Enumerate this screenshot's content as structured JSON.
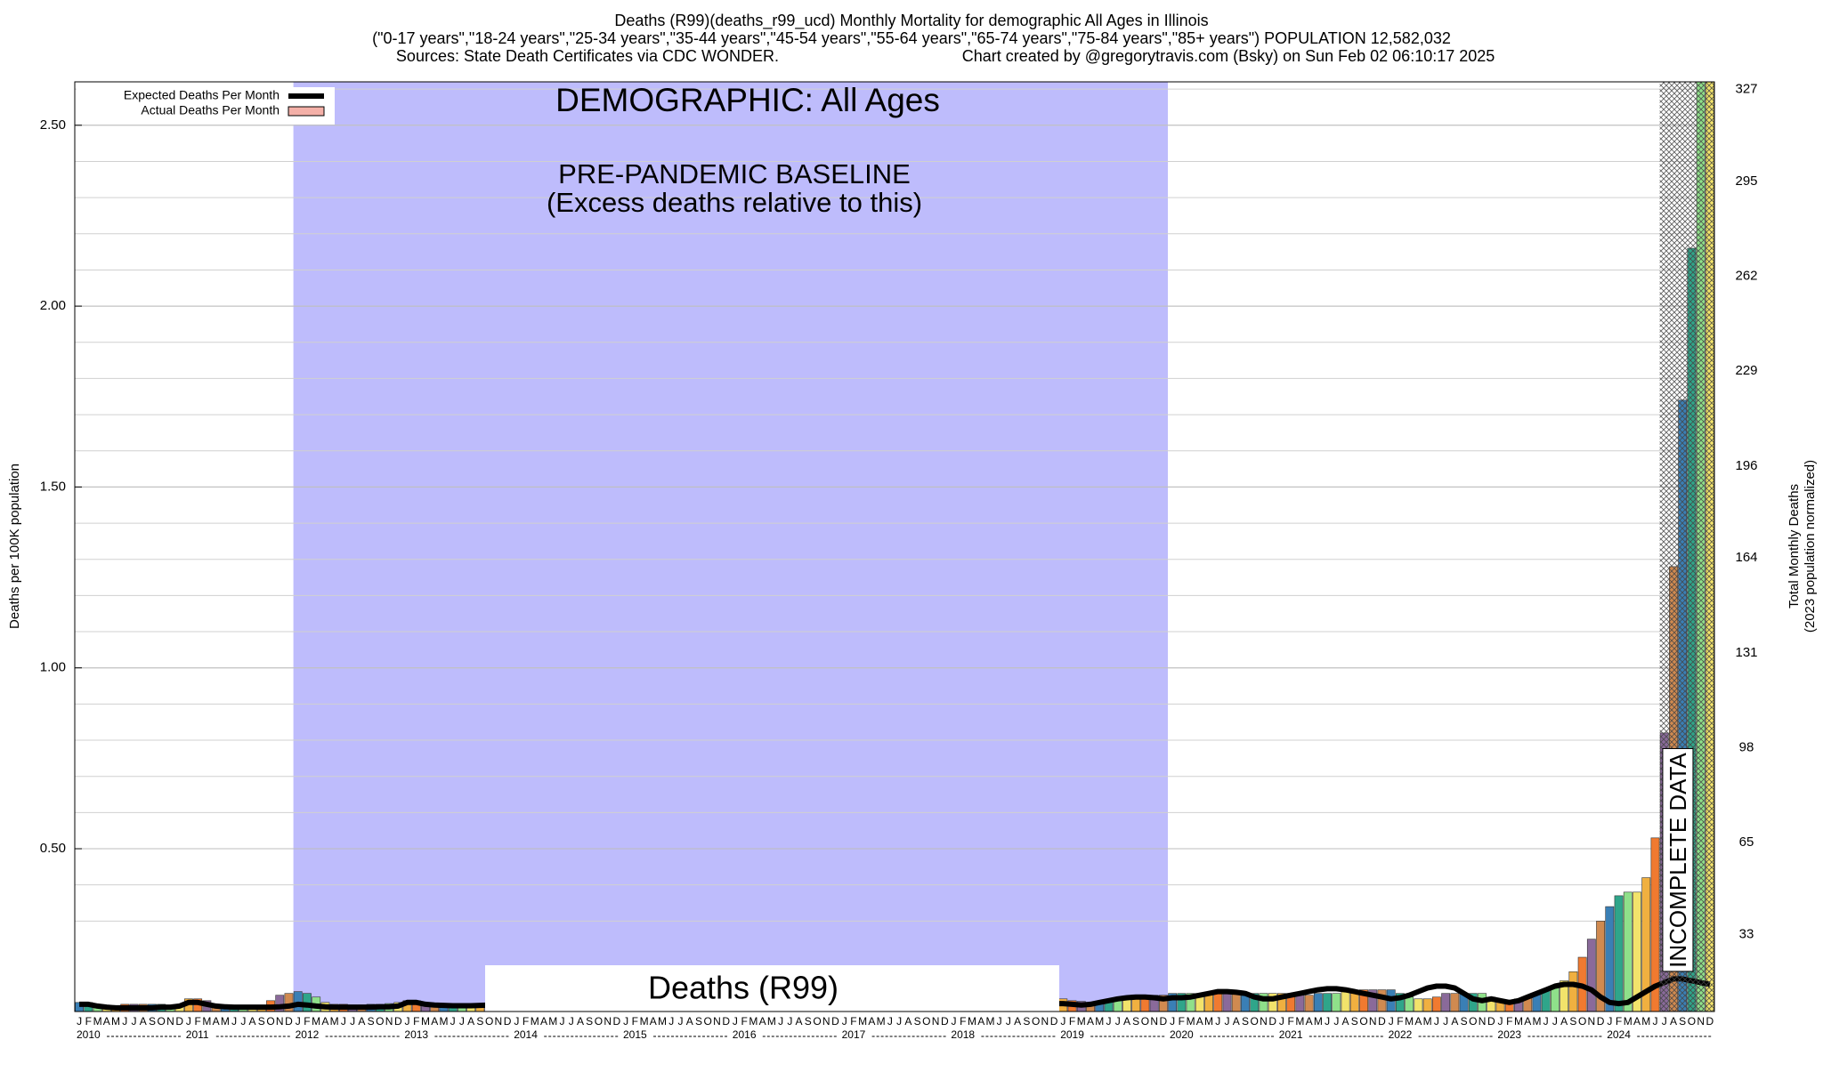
{
  "chart_data": {
    "type": "bar",
    "title": "Deaths (R99)(deaths_r99_ucd) Monthly Mortality for demographic All Ages in Illinois",
    "subtitle": "(\"0-17 years\",\"18-24 years\",\"25-34 years\",\"35-44 years\",\"45-54 years\",\"55-64 years\",\"65-74 years\",\"75-84 years\",\"85+ years\") POPULATION 12,582,032",
    "sources": "Sources: State Death Certificates via CDC WONDER.",
    "credit": "Chart created by @gregorytravis.com (Bsky) on Sun Feb 02 06:10:17 2025",
    "ylabel": "Deaths per 100K population",
    "y2label": "Total Monthly Deaths",
    "y2label_sub": "(2023 population normalized)",
    "demographic_label": "DEMOGRAPHIC: All Ages",
    "baseline_label": "PRE-PANDEMIC BASELINE",
    "baseline_sub": "(Excess deaths relative to this)",
    "cause_label": "Deaths (R99)",
    "incomplete_label": "INCOMPLETE DATA",
    "month_labels": [
      "J",
      "F",
      "M",
      "A",
      "M",
      "J",
      "J",
      "A",
      "S",
      "O",
      "N",
      "D"
    ],
    "years": [
      2010,
      2011,
      2012,
      2013,
      2014,
      2015,
      2016,
      2017,
      2018,
      2019,
      2020,
      2021,
      2022,
      2023,
      2024
    ],
    "ylim": [
      0.05,
      2.62
    ],
    "yticks": [
      {
        "value": 0.5,
        "label": "0.50"
      },
      {
        "value": 1.0,
        "label": "1.00"
      },
      {
        "value": 1.5,
        "label": "1.50"
      },
      {
        "value": 2.0,
        "label": "2.00"
      },
      {
        "value": 2.5,
        "label": "2.50"
      }
    ],
    "y2lim": [
      6.3,
      329.6
    ],
    "y2ticks": [
      33,
      65,
      98,
      131,
      164,
      196,
      229,
      262,
      295,
      327
    ],
    "grid": true,
    "legend": "top-left",
    "palette": [
      "#3a7fb5",
      "#2fa58a",
      "#8fe08a",
      "#f2e36b",
      "#f0b040",
      "#f07a30",
      "#8a6a9a",
      "#d08a50"
    ],
    "series": [
      {
        "name": "Expected Deaths Per Month",
        "color": "#000000",
        "values": [
          0.07,
          0.07,
          0.065,
          0.062,
          0.06,
          0.06,
          0.06,
          0.06,
          0.06,
          0.062,
          0.062,
          0.065,
          0.075,
          0.075,
          0.07,
          0.065,
          0.063,
          0.062,
          0.062,
          0.062,
          0.062,
          0.062,
          0.063,
          0.065,
          0.07,
          0.068,
          0.065,
          0.063,
          0.062,
          0.062,
          0.062,
          0.062,
          0.062,
          0.063,
          0.063,
          0.065,
          0.075,
          0.075,
          0.07,
          0.068,
          0.067,
          0.066,
          0.066,
          0.066,
          0.067,
          0.068,
          0.07,
          0.072,
          0.072,
          0.07,
          0.068,
          0.066,
          0.065,
          0.065,
          0.065,
          0.065,
          0.066,
          0.068,
          0.07,
          0.072,
          0.072,
          0.07,
          0.068,
          0.066,
          0.065,
          0.065,
          0.065,
          0.065,
          0.066,
          0.068,
          0.07,
          0.072,
          0.072,
          0.07,
          0.068,
          0.066,
          0.065,
          0.065,
          0.065,
          0.065,
          0.066,
          0.068,
          0.07,
          0.072,
          0.072,
          0.07,
          0.068,
          0.066,
          0.065,
          0.065,
          0.065,
          0.065,
          0.066,
          0.068,
          0.07,
          0.072,
          0.072,
          0.07,
          0.068,
          0.066,
          0.065,
          0.065,
          0.065,
          0.065,
          0.066,
          0.068,
          0.07,
          0.072,
          0.072,
          0.07,
          0.068,
          0.07,
          0.075,
          0.08,
          0.085,
          0.088,
          0.09,
          0.09,
          0.088,
          0.085,
          0.088,
          0.088,
          0.09,
          0.095,
          0.1,
          0.105,
          0.105,
          0.103,
          0.1,
          0.09,
          0.085,
          0.085,
          0.09,
          0.095,
          0.1,
          0.105,
          0.11,
          0.113,
          0.113,
          0.11,
          0.105,
          0.1,
          0.095,
          0.09,
          0.085,
          0.088,
          0.095,
          0.105,
          0.115,
          0.12,
          0.12,
          0.115,
          0.1,
          0.085,
          0.08,
          0.085,
          0.08,
          0.075,
          0.08,
          0.09,
          0.1,
          0.11,
          0.12,
          0.125,
          0.125,
          0.12,
          0.11,
          0.09,
          0.075,
          0.072,
          0.075,
          0.09,
          0.105,
          0.12,
          0.13,
          0.14,
          0.14,
          0.135,
          0.13,
          0.125
        ]
      },
      {
        "name": "Actual Deaths Per Month",
        "color": "#f4b0a8",
        "values": [
          0.075,
          0.075,
          0.07,
          0.065,
          0.065,
          0.07,
          0.07,
          0.07,
          0.07,
          0.07,
          0.065,
          0.065,
          0.085,
          0.085,
          0.08,
          0.07,
          0.065,
          0.065,
          0.065,
          0.06,
          0.065,
          0.08,
          0.095,
          0.1,
          0.105,
          0.1,
          0.09,
          0.075,
          0.07,
          0.07,
          0.068,
          0.068,
          0.07,
          0.07,
          0.072,
          0.075,
          0.08,
          0.08,
          0.075,
          0.072,
          0.07,
          0.07,
          0.07,
          0.07,
          0.07,
          0.072,
          0.075,
          0.078,
          0.08,
          0.08,
          0.078,
          0.075,
          0.072,
          0.07,
          0.07,
          0.07,
          0.072,
          0.075,
          0.078,
          0.08,
          0.08,
          0.08,
          0.078,
          0.075,
          0.072,
          0.07,
          0.07,
          0.07,
          0.072,
          0.075,
          0.078,
          0.08,
          0.08,
          0.08,
          0.078,
          0.075,
          0.072,
          0.07,
          0.07,
          0.07,
          0.072,
          0.075,
          0.078,
          0.08,
          0.08,
          0.08,
          0.078,
          0.075,
          0.072,
          0.07,
          0.07,
          0.07,
          0.072,
          0.075,
          0.078,
          0.08,
          0.08,
          0.08,
          0.078,
          0.075,
          0.072,
          0.07,
          0.07,
          0.07,
          0.072,
          0.075,
          0.078,
          0.08,
          0.085,
          0.08,
          0.078,
          0.075,
          0.075,
          0.078,
          0.08,
          0.085,
          0.09,
          0.095,
          0.095,
          0.095,
          0.1,
          0.1,
          0.1,
          0.1,
          0.1,
          0.1,
          0.1,
          0.1,
          0.1,
          0.1,
          0.1,
          0.1,
          0.1,
          0.1,
          0.095,
          0.095,
          0.1,
          0.1,
          0.1,
          0.105,
          0.105,
          0.11,
          0.11,
          0.11,
          0.11,
          0.1,
          0.09,
          0.085,
          0.085,
          0.09,
          0.1,
          0.1,
          0.1,
          0.1,
          0.1,
          0.09,
          0.08,
          0.08,
          0.085,
          0.09,
          0.1,
          0.11,
          0.12,
          0.135,
          0.16,
          0.2,
          0.25,
          0.3,
          0.34,
          0.37,
          0.38,
          0.38,
          0.42,
          0.53,
          0.82,
          1.28,
          1.74,
          2.16,
          2.62,
          2.62
        ]
      }
    ]
  }
}
